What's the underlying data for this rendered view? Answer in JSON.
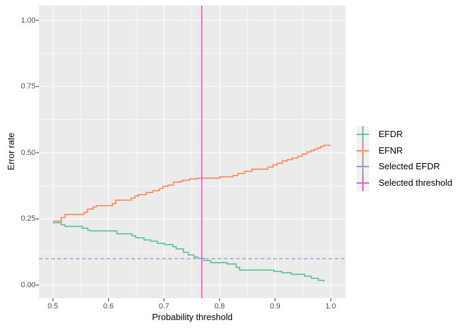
{
  "figure": {
    "background": "#FFFFFF",
    "panel_background": "#EBEBEB",
    "grid_color": "#FFFFFF",
    "tick_mark_color": "#333333",
    "tick_label_color": "#4D4D4D"
  },
  "chart_data": {
    "type": "line",
    "step": "hv",
    "title": "",
    "xlabel": "Probability threshold",
    "ylabel": "Error rate",
    "xlim": [
      0.475,
      1.027
    ],
    "ylim": [
      -0.049,
      1.056
    ],
    "x_ticks": [
      0.5,
      0.6,
      0.7,
      0.8,
      0.9,
      1.0
    ],
    "x_tick_labels": [
      "0.5",
      "0.6",
      "0.7",
      "0.8",
      "0.9",
      "1.0"
    ],
    "x_minor_ticks": [
      0.55,
      0.65,
      0.75,
      0.85,
      0.95
    ],
    "y_ticks": [
      0.0,
      0.25,
      0.5,
      0.75,
      1.0
    ],
    "y_tick_labels": [
      "0.00",
      "0.25",
      "0.50",
      "0.75",
      "1.00"
    ],
    "y_minor_ticks": [
      0.125,
      0.375,
      0.625,
      0.875
    ],
    "grid": true,
    "legend_position": "right",
    "series": [
      {
        "name": "EFDR",
        "color": "#66C2A5",
        "linetype": "solid",
        "kind": "step",
        "points": [
          [
            0.5,
            0.236
          ],
          [
            0.515,
            0.228
          ],
          [
            0.522,
            0.222
          ],
          [
            0.553,
            0.215
          ],
          [
            0.563,
            0.207
          ],
          [
            0.569,
            0.205
          ],
          [
            0.615,
            0.194
          ],
          [
            0.642,
            0.187
          ],
          [
            0.649,
            0.179
          ],
          [
            0.664,
            0.171
          ],
          [
            0.676,
            0.166
          ],
          [
            0.688,
            0.158
          ],
          [
            0.701,
            0.153
          ],
          [
            0.716,
            0.145
          ],
          [
            0.722,
            0.137
          ],
          [
            0.735,
            0.124
          ],
          [
            0.744,
            0.114
          ],
          [
            0.754,
            0.106
          ],
          [
            0.761,
            0.101
          ],
          [
            0.772,
            0.093
          ],
          [
            0.784,
            0.085
          ],
          [
            0.814,
            0.08
          ],
          [
            0.83,
            0.067
          ],
          [
            0.836,
            0.057
          ],
          [
            0.898,
            0.052
          ],
          [
            0.912,
            0.047
          ],
          [
            0.929,
            0.041
          ],
          [
            0.953,
            0.034
          ],
          [
            0.965,
            0.026
          ],
          [
            0.978,
            0.018
          ],
          [
            0.988,
            0.013
          ]
        ]
      },
      {
        "name": "EFNR",
        "color": "#FC8D62",
        "linetype": "solid",
        "kind": "step",
        "points": [
          [
            0.5,
            0.242
          ],
          [
            0.515,
            0.255
          ],
          [
            0.522,
            0.267
          ],
          [
            0.556,
            0.275
          ],
          [
            0.562,
            0.287
          ],
          [
            0.572,
            0.295
          ],
          [
            0.578,
            0.3
          ],
          [
            0.607,
            0.308
          ],
          [
            0.613,
            0.321
          ],
          [
            0.641,
            0.329
          ],
          [
            0.648,
            0.337
          ],
          [
            0.654,
            0.342
          ],
          [
            0.668,
            0.35
          ],
          [
            0.68,
            0.357
          ],
          [
            0.692,
            0.365
          ],
          [
            0.698,
            0.373
          ],
          [
            0.707,
            0.378
          ],
          [
            0.717,
            0.389
          ],
          [
            0.727,
            0.391
          ],
          [
            0.733,
            0.396
          ],
          [
            0.746,
            0.401
          ],
          [
            0.76,
            0.404
          ],
          [
            0.8,
            0.409
          ],
          [
            0.824,
            0.414
          ],
          [
            0.833,
            0.422
          ],
          [
            0.845,
            0.43
          ],
          [
            0.858,
            0.438
          ],
          [
            0.887,
            0.446
          ],
          [
            0.896,
            0.454
          ],
          [
            0.904,
            0.46
          ],
          [
            0.913,
            0.469
          ],
          [
            0.922,
            0.474
          ],
          [
            0.931,
            0.48
          ],
          [
            0.941,
            0.487
          ],
          [
            0.949,
            0.495
          ],
          [
            0.957,
            0.503
          ],
          [
            0.964,
            0.508
          ],
          [
            0.97,
            0.513
          ],
          [
            0.976,
            0.518
          ],
          [
            0.982,
            0.524
          ],
          [
            0.988,
            0.528
          ],
          [
            1.0,
            0.528
          ]
        ]
      },
      {
        "name": "Selected EFDR",
        "color": "#8B9FCC",
        "linetype": "dashed",
        "kind": "hline",
        "y": 0.1
      },
      {
        "name": "Selected threshold",
        "color": "#E166BD",
        "linetype": "solid",
        "kind": "vline",
        "x": 0.768
      }
    ]
  },
  "legend": {
    "items": [
      {
        "label": "EFDR"
      },
      {
        "label": "EFNR"
      },
      {
        "label": "Selected EFDR"
      },
      {
        "label": "Selected threshold"
      }
    ]
  }
}
